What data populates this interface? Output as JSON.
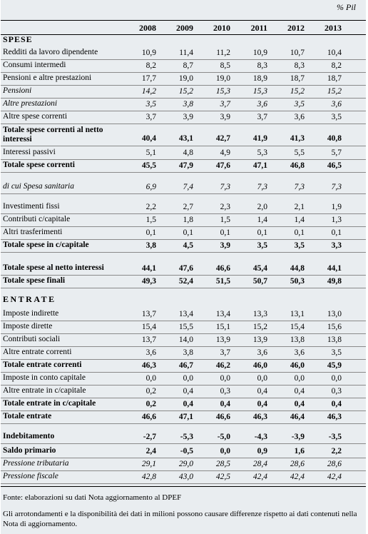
{
  "unit": "% Pil",
  "years": [
    "2008",
    "2009",
    "2010",
    "2011",
    "2012",
    "2013"
  ],
  "spese_title": "SPESE",
  "entrate_title": "ENTRATE",
  "spese": [
    {
      "label": "Redditi da lavoro dipendente",
      "values": [
        "10,9",
        "11,4",
        "11,2",
        "10,9",
        "10,7",
        "10,4"
      ]
    },
    {
      "label": "Consumi intermedi",
      "values": [
        "8,2",
        "8,7",
        "8,5",
        "8,3",
        "8,3",
        "8,2"
      ]
    },
    {
      "label": "Pensioni e altre prestazioni",
      "values": [
        "17,7",
        "19,0",
        "19,0",
        "18,9",
        "18,7",
        "18,7"
      ]
    },
    {
      "label": "Pensioni",
      "values": [
        "14,2",
        "15,2",
        "15,3",
        "15,3",
        "15,2",
        "15,2"
      ]
    },
    {
      "label": "Altre prestazioni",
      "values": [
        "3,5",
        "3,8",
        "3,7",
        "3,6",
        "3,5",
        "3,6"
      ]
    },
    {
      "label": "Altre spese correnti",
      "values": [
        "3,7",
        "3,9",
        "3,9",
        "3,7",
        "3,6",
        "3,5"
      ]
    },
    {
      "label": "Totale spese correnti al netto interessi",
      "values": [
        "40,4",
        "43,1",
        "42,7",
        "41,9",
        "41,3",
        "40,8"
      ]
    },
    {
      "label": "Interessi passivi",
      "values": [
        "5,1",
        "4,8",
        "4,9",
        "5,3",
        "5,5",
        "5,7"
      ]
    },
    {
      "label": "Totale spese correnti",
      "values": [
        "45,5",
        "47,9",
        "47,6",
        "47,1",
        "46,8",
        "46,5"
      ]
    },
    {
      "label": "di cui Spesa sanitaria",
      "values": [
        "6,9",
        "7,4",
        "7,3",
        "7,3",
        "7,3",
        "7,3"
      ]
    },
    {
      "label": "Investimenti fissi",
      "values": [
        "2,2",
        "2,7",
        "2,3",
        "2,0",
        "2,1",
        "1,9"
      ]
    },
    {
      "label": "Contributi c/capitale",
      "values": [
        "1,5",
        "1,8",
        "1,5",
        "1,4",
        "1,4",
        "1,3"
      ]
    },
    {
      "label": "Altri trasferimenti",
      "values": [
        "0,1",
        "0,1",
        "0,1",
        "0,1",
        "0,1",
        "0,1"
      ]
    },
    {
      "label": "Totale spese in c/capitale",
      "values": [
        "3,8",
        "4,5",
        "3,9",
        "3,5",
        "3,5",
        "3,3"
      ]
    },
    {
      "label": "Totale spese al netto interessi",
      "values": [
        "44,1",
        "47,6",
        "46,6",
        "45,4",
        "44,8",
        "44,1"
      ]
    },
    {
      "label": "Totale spese finali",
      "values": [
        "49,3",
        "52,4",
        "51,5",
        "50,7",
        "50,3",
        "49,8"
      ]
    }
  ],
  "entrate": [
    {
      "label": "Imposte indirette",
      "values": [
        "13,7",
        "13,4",
        "13,4",
        "13,3",
        "13,1",
        "13,0"
      ]
    },
    {
      "label": "Imposte dirette",
      "values": [
        "15,4",
        "15,5",
        "15,1",
        "15,2",
        "15,4",
        "15,6"
      ]
    },
    {
      "label": "Contributi sociali",
      "values": [
        "13,7",
        "14,0",
        "13,9",
        "13,9",
        "13,8",
        "13,8"
      ]
    },
    {
      "label": "Altre entrate correnti",
      "values": [
        "3,6",
        "3,8",
        "3,7",
        "3,6",
        "3,6",
        "3,5"
      ]
    },
    {
      "label": "Totale entrate correnti",
      "values": [
        "46,3",
        "46,7",
        "46,2",
        "46,0",
        "46,0",
        "45,9"
      ]
    },
    {
      "label": "Imposte in conto capitale",
      "values": [
        "0,0",
        "0,0",
        "0,0",
        "0,0",
        "0,0",
        "0,0"
      ]
    },
    {
      "label": "Altre entrate in c/capitale",
      "values": [
        "0,2",
        "0,4",
        "0,3",
        "0,4",
        "0,4",
        "0,3"
      ]
    },
    {
      "label": "Totale entrate in c/capitale",
      "values": [
        "0,2",
        "0,4",
        "0,4",
        "0,4",
        "0,4",
        "0,4"
      ]
    },
    {
      "label": "Totale entrate",
      "values": [
        "46,6",
        "47,1",
        "46,6",
        "46,3",
        "46,4",
        "46,3"
      ]
    }
  ],
  "saldi": [
    {
      "label": "Indebitamento",
      "values": [
        "-2,7",
        "-5,3",
        "-5,0",
        "-4,3",
        "-3,9",
        "-3,5"
      ]
    },
    {
      "label": "Saldo primario",
      "values": [
        "2,4",
        "-0,5",
        "0,0",
        "0,9",
        "1,6",
        "2,2"
      ]
    },
    {
      "label": "Pressione tributaria",
      "values": [
        "29,1",
        "29,0",
        "28,5",
        "28,4",
        "28,6",
        "28,6"
      ]
    },
    {
      "label": "Pressione fiscale",
      "values": [
        "42,8",
        "43,0",
        "42,5",
        "42,4",
        "42,4",
        "42,4"
      ]
    }
  ],
  "footer": {
    "source": "Fonte: elaborazioni su dati Nota aggiornamento al DPEF",
    "note": "Gli arrotondamenti e la disponibilità dei dati in milioni possono causare differenze rispetto ai dati contenuti nella Nota di aggiornamento."
  }
}
